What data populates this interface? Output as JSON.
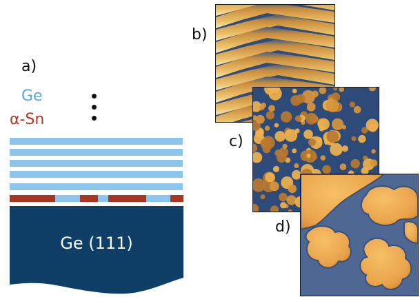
{
  "labels": {
    "a": "a)",
    "b": "b)",
    "c": "c)",
    "d": "d)"
  },
  "legend": {
    "ge": "Ge",
    "sn": "α-Sn",
    "ge_color": "#5aa6dc",
    "sn_color": "#b23a25"
  },
  "substrate": {
    "label": "Ge (111)",
    "color": "#0f3f66"
  },
  "ge_layers_count": 5,
  "colors": {
    "layer_blue": "#8cc6ee",
    "sn_red": "#a83622",
    "stm_dark": "#2e4c7c",
    "stm_mid": "#c48a3e",
    "stm_light": "#f4bf5e"
  }
}
